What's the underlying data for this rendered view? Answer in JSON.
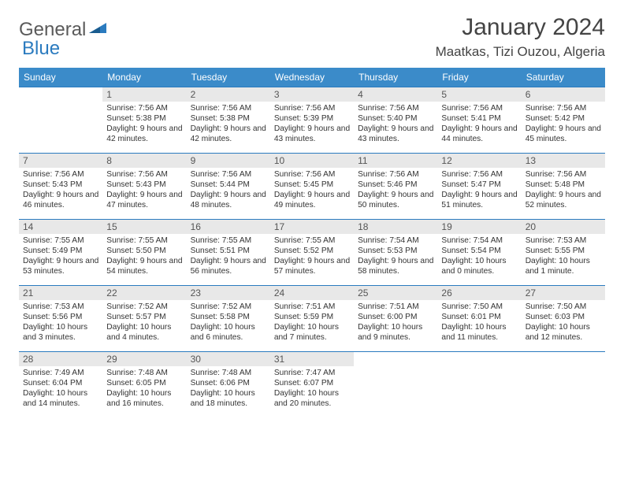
{
  "brand": {
    "name_gray": "General",
    "name_blue": "Blue"
  },
  "title": "January 2024",
  "location": "Maatkas, Tizi Ouzou, Algeria",
  "colors": {
    "header_bg": "#3b8bc9",
    "header_text": "#ffffff",
    "row_border": "#2b7bbf",
    "daynum_bg": "#e8e8e8",
    "text": "#333333",
    "logo_gray": "#5a5a5a",
    "logo_blue": "#2b7bbf",
    "page_bg": "#ffffff"
  },
  "weekdays": [
    "Sunday",
    "Monday",
    "Tuesday",
    "Wednesday",
    "Thursday",
    "Friday",
    "Saturday"
  ],
  "weeks": [
    [
      {
        "n": "",
        "sr": "",
        "ss": "",
        "dl": ""
      },
      {
        "n": "1",
        "sr": "7:56 AM",
        "ss": "5:38 PM",
        "dl": "9 hours and 42 minutes."
      },
      {
        "n": "2",
        "sr": "7:56 AM",
        "ss": "5:38 PM",
        "dl": "9 hours and 42 minutes."
      },
      {
        "n": "3",
        "sr": "7:56 AM",
        "ss": "5:39 PM",
        "dl": "9 hours and 43 minutes."
      },
      {
        "n": "4",
        "sr": "7:56 AM",
        "ss": "5:40 PM",
        "dl": "9 hours and 43 minutes."
      },
      {
        "n": "5",
        "sr": "7:56 AM",
        "ss": "5:41 PM",
        "dl": "9 hours and 44 minutes."
      },
      {
        "n": "6",
        "sr": "7:56 AM",
        "ss": "5:42 PM",
        "dl": "9 hours and 45 minutes."
      }
    ],
    [
      {
        "n": "7",
        "sr": "7:56 AM",
        "ss": "5:43 PM",
        "dl": "9 hours and 46 minutes."
      },
      {
        "n": "8",
        "sr": "7:56 AM",
        "ss": "5:43 PM",
        "dl": "9 hours and 47 minutes."
      },
      {
        "n": "9",
        "sr": "7:56 AM",
        "ss": "5:44 PM",
        "dl": "9 hours and 48 minutes."
      },
      {
        "n": "10",
        "sr": "7:56 AM",
        "ss": "5:45 PM",
        "dl": "9 hours and 49 minutes."
      },
      {
        "n": "11",
        "sr": "7:56 AM",
        "ss": "5:46 PM",
        "dl": "9 hours and 50 minutes."
      },
      {
        "n": "12",
        "sr": "7:56 AM",
        "ss": "5:47 PM",
        "dl": "9 hours and 51 minutes."
      },
      {
        "n": "13",
        "sr": "7:56 AM",
        "ss": "5:48 PM",
        "dl": "9 hours and 52 minutes."
      }
    ],
    [
      {
        "n": "14",
        "sr": "7:55 AM",
        "ss": "5:49 PM",
        "dl": "9 hours and 53 minutes."
      },
      {
        "n": "15",
        "sr": "7:55 AM",
        "ss": "5:50 PM",
        "dl": "9 hours and 54 minutes."
      },
      {
        "n": "16",
        "sr": "7:55 AM",
        "ss": "5:51 PM",
        "dl": "9 hours and 56 minutes."
      },
      {
        "n": "17",
        "sr": "7:55 AM",
        "ss": "5:52 PM",
        "dl": "9 hours and 57 minutes."
      },
      {
        "n": "18",
        "sr": "7:54 AM",
        "ss": "5:53 PM",
        "dl": "9 hours and 58 minutes."
      },
      {
        "n": "19",
        "sr": "7:54 AM",
        "ss": "5:54 PM",
        "dl": "10 hours and 0 minutes."
      },
      {
        "n": "20",
        "sr": "7:53 AM",
        "ss": "5:55 PM",
        "dl": "10 hours and 1 minute."
      }
    ],
    [
      {
        "n": "21",
        "sr": "7:53 AM",
        "ss": "5:56 PM",
        "dl": "10 hours and 3 minutes."
      },
      {
        "n": "22",
        "sr": "7:52 AM",
        "ss": "5:57 PM",
        "dl": "10 hours and 4 minutes."
      },
      {
        "n": "23",
        "sr": "7:52 AM",
        "ss": "5:58 PM",
        "dl": "10 hours and 6 minutes."
      },
      {
        "n": "24",
        "sr": "7:51 AM",
        "ss": "5:59 PM",
        "dl": "10 hours and 7 minutes."
      },
      {
        "n": "25",
        "sr": "7:51 AM",
        "ss": "6:00 PM",
        "dl": "10 hours and 9 minutes."
      },
      {
        "n": "26",
        "sr": "7:50 AM",
        "ss": "6:01 PM",
        "dl": "10 hours and 11 minutes."
      },
      {
        "n": "27",
        "sr": "7:50 AM",
        "ss": "6:03 PM",
        "dl": "10 hours and 12 minutes."
      }
    ],
    [
      {
        "n": "28",
        "sr": "7:49 AM",
        "ss": "6:04 PM",
        "dl": "10 hours and 14 minutes."
      },
      {
        "n": "29",
        "sr": "7:48 AM",
        "ss": "6:05 PM",
        "dl": "10 hours and 16 minutes."
      },
      {
        "n": "30",
        "sr": "7:48 AM",
        "ss": "6:06 PM",
        "dl": "10 hours and 18 minutes."
      },
      {
        "n": "31",
        "sr": "7:47 AM",
        "ss": "6:07 PM",
        "dl": "10 hours and 20 minutes."
      },
      {
        "n": "",
        "sr": "",
        "ss": "",
        "dl": ""
      },
      {
        "n": "",
        "sr": "",
        "ss": "",
        "dl": ""
      },
      {
        "n": "",
        "sr": "",
        "ss": "",
        "dl": ""
      }
    ]
  ],
  "labels": {
    "sunrise": "Sunrise:",
    "sunset": "Sunset:",
    "daylight": "Daylight:"
  }
}
